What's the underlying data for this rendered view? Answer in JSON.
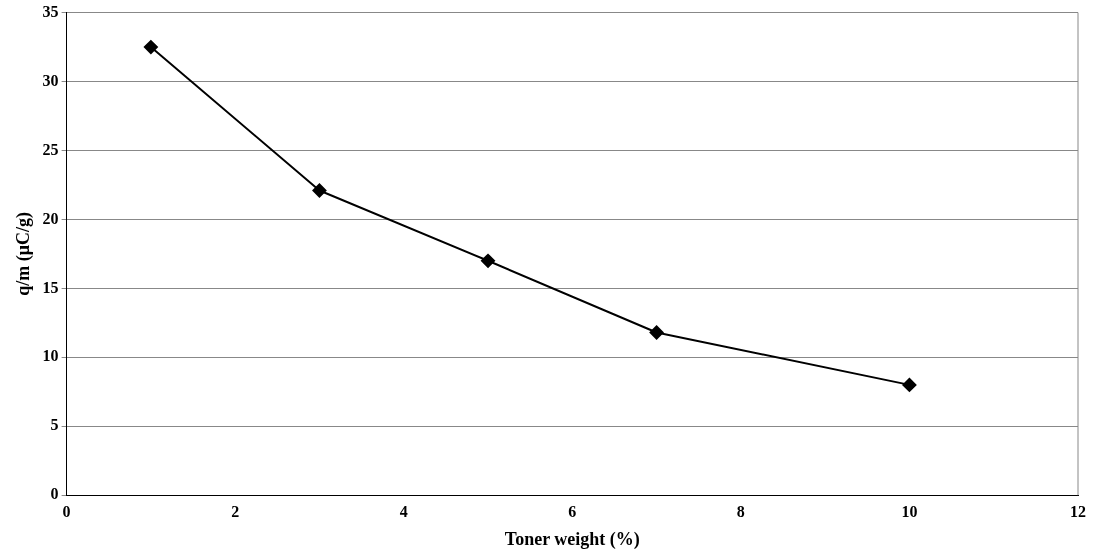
{
  "chart_data": {
    "type": "line",
    "xlabel": "Toner weight (%)",
    "ylabel": "q/m (μC/g)",
    "x": [
      1,
      3,
      5,
      7,
      10
    ],
    "series": [
      {
        "color": "#000000",
        "values": [
          32.5,
          22.1,
          17.0,
          11.8,
          8.0
        ]
      }
    ],
    "xlim": [
      0,
      12
    ],
    "xticks": [
      0,
      2,
      4,
      6,
      8,
      10,
      12
    ],
    "ylim": [
      0,
      35
    ],
    "yticks": [
      0,
      5,
      10,
      15,
      20,
      25,
      30,
      35
    ],
    "grid": "y",
    "legend": false,
    "marker": "diamond",
    "line_style": "solid"
  }
}
